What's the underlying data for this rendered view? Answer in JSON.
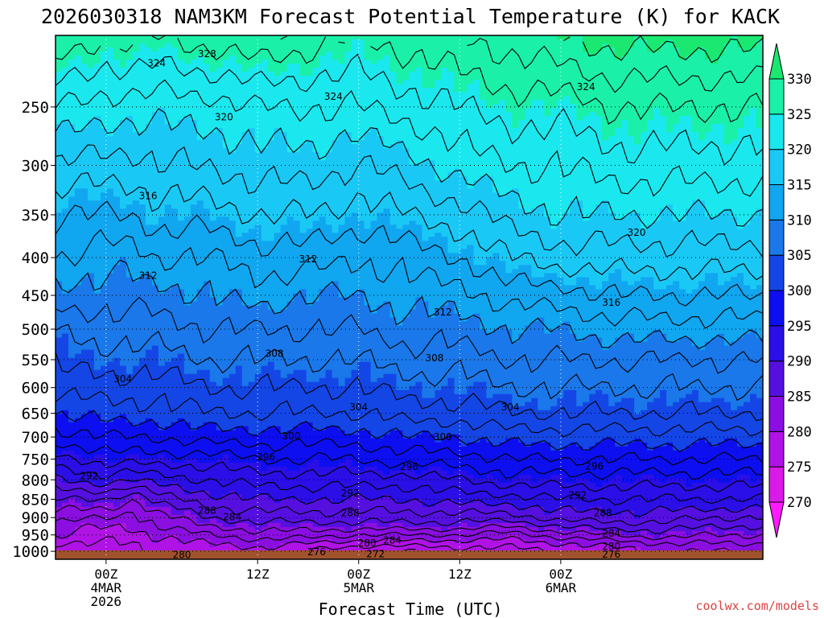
{
  "chart_data": {
    "type": "heatmap",
    "title": "2026030318 NAM3KM Forecast Potential Temperature (K) for KACK",
    "xlabel": "Forecast Time (UTC)",
    "ylabel": "",
    "credit": "coolwx.com/models",
    "x_range_hours": [
      -6,
      78
    ],
    "y_range_hPa": [
      1025,
      200
    ],
    "y_ticks": [
      {
        "value": 250,
        "label": "250"
      },
      {
        "value": 300,
        "label": "300"
      },
      {
        "value": 350,
        "label": "350"
      },
      {
        "value": 400,
        "label": "400"
      },
      {
        "value": 450,
        "label": "450"
      },
      {
        "value": 500,
        "label": "500"
      },
      {
        "value": 550,
        "label": "550"
      },
      {
        "value": 600,
        "label": "600"
      },
      {
        "value": 650,
        "label": "650"
      },
      {
        "value": 700,
        "label": "700"
      },
      {
        "value": 750,
        "label": "750"
      },
      {
        "value": 800,
        "label": "800"
      },
      {
        "value": 850,
        "label": "850"
      },
      {
        "value": 900,
        "label": "900"
      },
      {
        "value": 950,
        "label": "950"
      },
      {
        "value": 1000,
        "label": "1000"
      }
    ],
    "x_ticks": [
      {
        "hour": 0,
        "lines": [
          "00Z",
          "4MAR",
          "2026"
        ]
      },
      {
        "hour": 18,
        "lines": [
          "12Z"
        ]
      },
      {
        "hour": 30,
        "lines": [
          "00Z",
          "5MAR"
        ]
      },
      {
        "hour": 42,
        "lines": [
          "12Z"
        ]
      },
      {
        "hour": 54,
        "lines": [
          "00Z",
          "6MAR"
        ]
      }
    ],
    "colorbar": {
      "levels": [
        270,
        275,
        280,
        285,
        290,
        295,
        300,
        305,
        310,
        315,
        320,
        325,
        330
      ],
      "labels": [
        "270",
        "275",
        "280",
        "285",
        "290",
        "295",
        "300",
        "305",
        "310",
        "315",
        "320",
        "325",
        "330"
      ],
      "colors": [
        "#ff1aff",
        "#d91ae8",
        "#b013e6",
        "#8a0fe0",
        "#5510e0",
        "#2a0fe6",
        "#0d0ff0",
        "#1446e6",
        "#1a78ea",
        "#10a6f0",
        "#1ac8f5",
        "#1ae8ee",
        "#1af0a8",
        "#1ae870"
      ]
    },
    "ground_color": "#a0522d",
    "profile_pressures": [
      1000,
      975,
      950,
      925,
      900,
      850,
      800,
      750,
      700,
      650,
      600,
      550,
      500,
      450,
      400,
      350,
      300,
      250,
      200
    ],
    "profiles": [
      {
        "hour": -6,
        "theta": [
          276,
          278,
          280,
          281,
          283,
          286,
          290,
          293,
          297,
          300,
          303,
          304.5,
          306,
          309,
          312,
          314,
          318,
          322,
          328
        ]
      },
      {
        "hour": 0,
        "theta": [
          277,
          278,
          279,
          280,
          282,
          286,
          291,
          295,
          298,
          301,
          303,
          305,
          307,
          309,
          311,
          314,
          317,
          321,
          326
        ]
      },
      {
        "hour": 3,
        "theta": [
          277,
          278,
          279,
          280,
          281,
          284,
          290,
          295,
          298,
          301,
          303,
          305,
          307,
          309,
          311,
          314,
          317,
          321,
          327
        ]
      },
      {
        "hour": 6,
        "theta": [
          278,
          279,
          280,
          282,
          283,
          287,
          291,
          295,
          298,
          301,
          303,
          305,
          307,
          309,
          312,
          315,
          318,
          321,
          326
        ]
      },
      {
        "hour": 12,
        "theta": [
          279,
          280,
          282,
          284,
          286,
          289,
          292,
          295,
          299,
          302,
          304,
          306,
          308,
          310,
          312,
          315,
          318,
          321,
          327
        ]
      },
      {
        "hour": 18,
        "theta": [
          279,
          281,
          283,
          285,
          287,
          290,
          293,
          296,
          299,
          302,
          304,
          306,
          308,
          311,
          313,
          316,
          319,
          322,
          328
        ]
      },
      {
        "hour": 24,
        "theta": [
          278,
          280,
          283,
          285,
          287,
          290,
          293,
          296,
          299,
          302,
          304,
          306,
          308,
          310,
          313,
          316,
          319,
          322,
          327
        ]
      },
      {
        "hour": 30,
        "theta": [
          276,
          279,
          282,
          285,
          287,
          290,
          293,
          296,
          299,
          302,
          304,
          306,
          308,
          310,
          312,
          315,
          318,
          322,
          326
        ]
      },
      {
        "hour": 36,
        "theta": [
          276,
          279,
          282,
          285,
          287,
          290,
          293,
          297,
          300,
          303,
          305,
          307,
          309,
          311,
          313,
          316,
          319,
          323,
          327
        ]
      },
      {
        "hour": 42,
        "theta": [
          277,
          279,
          282,
          285,
          287,
          291,
          294,
          297,
          300,
          303,
          305,
          307,
          309,
          311,
          314,
          317,
          321,
          324,
          328
        ]
      },
      {
        "hour": 48,
        "theta": [
          277,
          279,
          281,
          284,
          287,
          291,
          295,
          298,
          301,
          304,
          306,
          308,
          310,
          313,
          316,
          319,
          322,
          325,
          329
        ]
      },
      {
        "hour": 54,
        "theta": [
          278,
          280,
          283,
          286,
          289,
          292,
          295,
          298,
          301,
          304,
          306,
          308,
          310,
          313,
          317,
          320,
          322,
          325,
          330
        ]
      },
      {
        "hour": 60,
        "theta": [
          279,
          281,
          284,
          287,
          289,
          292,
          295,
          298,
          301,
          304,
          306,
          308,
          311,
          314,
          317,
          320,
          323,
          326,
          331
        ]
      },
      {
        "hour": 66,
        "theta": [
          280,
          282,
          285,
          287,
          289,
          292,
          295,
          298,
          301,
          304,
          306,
          308,
          311,
          314,
          317,
          320,
          323,
          326,
          331
        ]
      },
      {
        "hour": 72,
        "theta": [
          280,
          282,
          284,
          286,
          288,
          292,
          295,
          298,
          301,
          304,
          306,
          308,
          311,
          314,
          317,
          320,
          323,
          326,
          331
        ]
      },
      {
        "hour": 78,
        "theta": [
          280,
          282,
          284,
          286,
          288,
          292,
          295,
          298,
          301,
          304,
          306,
          308,
          311,
          314,
          317,
          320,
          323,
          326,
          331
        ]
      }
    ],
    "contour_labels": [
      {
        "text": "328",
        "hour": 12,
        "pressure": 212
      },
      {
        "text": "324",
        "hour": 6,
        "pressure": 218
      },
      {
        "text": "324",
        "hour": 27,
        "pressure": 242
      },
      {
        "text": "324",
        "hour": 57,
        "pressure": 235
      },
      {
        "text": "320",
        "hour": 14,
        "pressure": 258
      },
      {
        "text": "320",
        "hour": 63,
        "pressure": 370
      },
      {
        "text": "316",
        "hour": 5,
        "pressure": 330
      },
      {
        "text": "316",
        "hour": 60,
        "pressure": 460
      },
      {
        "text": "312",
        "hour": 5,
        "pressure": 423
      },
      {
        "text": "312",
        "hour": 24,
        "pressure": 402
      },
      {
        "text": "312",
        "hour": 40,
        "pressure": 474
      },
      {
        "text": "308",
        "hour": 20,
        "pressure": 540
      },
      {
        "text": "308",
        "hour": 39,
        "pressure": 547
      },
      {
        "text": "304",
        "hour": 2,
        "pressure": 584
      },
      {
        "text": "304",
        "hour": 30,
        "pressure": 638
      },
      {
        "text": "304",
        "hour": 48,
        "pressure": 638
      },
      {
        "text": "300",
        "hour": 22,
        "pressure": 698
      },
      {
        "text": "300",
        "hour": 40,
        "pressure": 700
      },
      {
        "text": "296",
        "hour": 19,
        "pressure": 745
      },
      {
        "text": "296",
        "hour": 36,
        "pressure": 768
      },
      {
        "text": "296",
        "hour": 58,
        "pressure": 767
      },
      {
        "text": "292",
        "hour": -2,
        "pressure": 790
      },
      {
        "text": "292",
        "hour": 29,
        "pressure": 834
      },
      {
        "text": "292",
        "hour": 56,
        "pressure": 840
      },
      {
        "text": "288",
        "hour": 12,
        "pressure": 881
      },
      {
        "text": "288",
        "hour": 29,
        "pressure": 887
      },
      {
        "text": "288",
        "hour": 59,
        "pressure": 887
      },
      {
        "text": "284",
        "hour": 15,
        "pressure": 898
      },
      {
        "text": "284",
        "hour": 34,
        "pressure": 966
      },
      {
        "text": "284",
        "hour": 60,
        "pressure": 946
      },
      {
        "text": "280",
        "hour": 9,
        "pressure": 1011
      },
      {
        "text": "280",
        "hour": 31,
        "pressure": 975
      },
      {
        "text": "280",
        "hour": 60,
        "pressure": 985
      },
      {
        "text": "276",
        "hour": 25,
        "pressure": 1002
      },
      {
        "text": "276",
        "hour": 60,
        "pressure": 1010
      },
      {
        "text": "272",
        "hour": 32,
        "pressure": 1008
      }
    ]
  }
}
